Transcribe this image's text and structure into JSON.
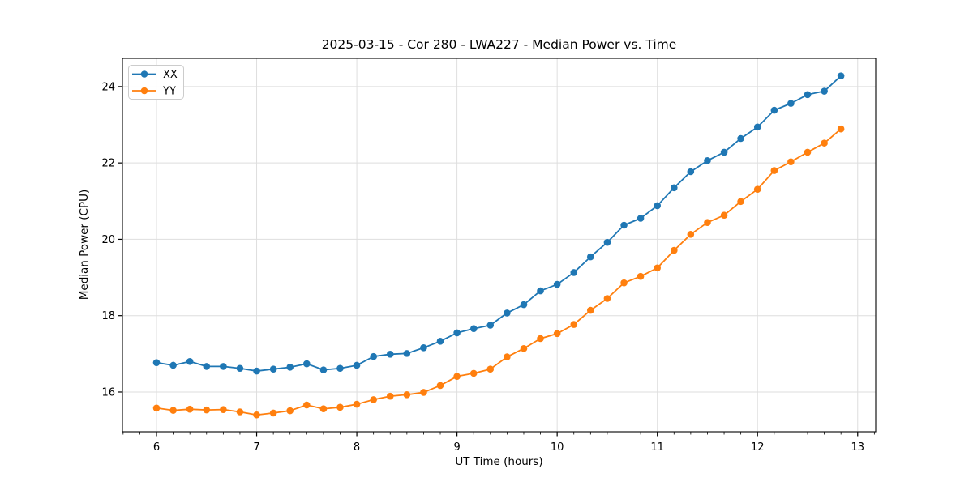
{
  "chart_data": {
    "type": "line",
    "title": "2025-03-15 - Cor 280 - LWA227 - Median Power vs. Time",
    "xlabel": "UT Time (hours)",
    "ylabel": "Median Power (CPU)",
    "xlim": [
      5.66,
      13.18
    ],
    "ylim": [
      14.96,
      24.74
    ],
    "xticks": [
      6,
      7,
      8,
      9,
      10,
      11,
      12,
      13
    ],
    "yticks": [
      16,
      18,
      20,
      22,
      24
    ],
    "xtick_minor_step": 0.1666667,
    "grid": true,
    "grid_color": "#dedede",
    "frame_color": "#000000",
    "legend_position": "upper-left",
    "x": [
      6.0,
      6.167,
      6.333,
      6.5,
      6.667,
      6.833,
      7.0,
      7.167,
      7.333,
      7.5,
      7.667,
      7.833,
      8.0,
      8.167,
      8.333,
      8.5,
      8.667,
      8.833,
      9.0,
      9.167,
      9.333,
      9.5,
      9.667,
      9.833,
      10.0,
      10.167,
      10.333,
      10.5,
      10.667,
      10.833,
      11.0,
      11.167,
      11.333,
      11.5,
      11.667,
      11.833,
      12.0,
      12.167,
      12.333,
      12.5,
      12.667,
      12.833
    ],
    "series": [
      {
        "name": "XX",
        "color": "#1f77b4",
        "values": [
          16.77,
          16.7,
          16.8,
          16.67,
          16.67,
          16.62,
          16.55,
          16.6,
          16.65,
          16.74,
          16.58,
          16.62,
          16.7,
          16.93,
          16.99,
          17.01,
          17.16,
          17.33,
          17.55,
          17.66,
          17.75,
          18.07,
          18.29,
          18.65,
          18.82,
          19.13,
          19.54,
          19.92,
          20.37,
          20.55,
          20.88,
          21.35,
          21.77,
          22.06,
          22.28,
          22.64,
          22.94,
          23.38,
          23.56,
          23.79,
          23.88,
          24.28
        ]
      },
      {
        "name": "YY",
        "color": "#ff7f0e",
        "values": [
          15.58,
          15.52,
          15.55,
          15.53,
          15.54,
          15.48,
          15.4,
          15.45,
          15.51,
          15.66,
          15.56,
          15.6,
          15.68,
          15.8,
          15.89,
          15.93,
          15.99,
          16.17,
          16.41,
          16.49,
          16.6,
          16.92,
          17.14,
          17.4,
          17.53,
          17.77,
          18.14,
          18.45,
          18.86,
          19.03,
          19.25,
          19.71,
          20.13,
          20.44,
          20.63,
          20.99,
          21.31,
          21.8,
          22.03,
          22.28,
          22.52,
          22.89
        ]
      }
    ]
  }
}
